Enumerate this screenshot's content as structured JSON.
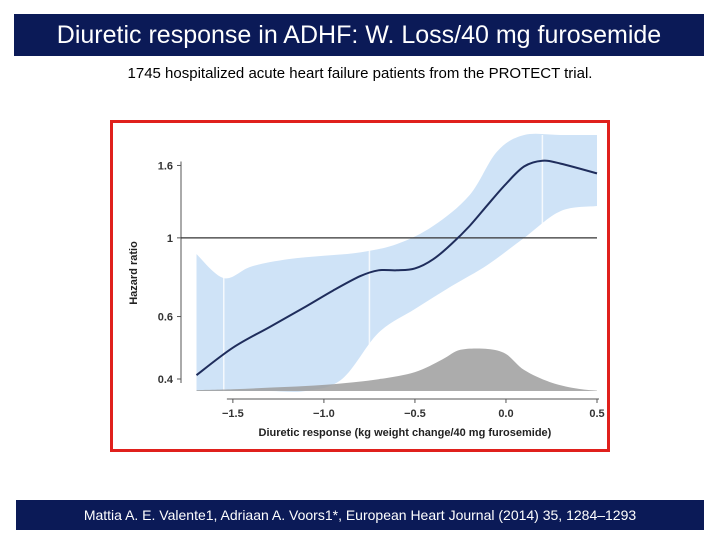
{
  "slide": {
    "title": "Diuretic response in ADHF: W. Loss/40 mg furosemide",
    "subtitle": "1745 hospitalized acute heart failure patients from the PROTECT trial.",
    "citation": "Mattia A. E. Valente1, Adriaan A. Voors1*, European Heart Journal (2014) 35, 1284–1293"
  },
  "colors": {
    "title_bg": "#0b1a57",
    "frame_border": "#e0201c",
    "ci_band": "#cfe3f7",
    "curve": "#1f2d5c",
    "reference_line": "#333333",
    "density": "#9e9e9e"
  },
  "chart_data": {
    "type": "line",
    "xlabel": "Diuretic response (kg weight change/40 mg furosemide)",
    "ylabel": "Hazard ratio",
    "x_ticks": [
      "−1.5",
      "−1.0",
      "−0.5",
      "0.0",
      "0.5"
    ],
    "x_tick_values": [
      -1.5,
      -1.0,
      -0.5,
      0.0,
      0.5
    ],
    "y_ticks": [
      "0.4",
      "0.6",
      "1",
      "1.6"
    ],
    "y_tick_values": [
      0.4,
      0.6,
      1.0,
      1.6
    ],
    "y_scale": "log",
    "xlim": [
      -1.73,
      0.5
    ],
    "ylim": [
      0.37,
      1.95
    ],
    "reference_line_y": 1.0,
    "series": [
      {
        "role": "hazard-ratio-curve",
        "x": [
          -1.7,
          -1.5,
          -1.3,
          -1.1,
          -0.95,
          -0.8,
          -0.7,
          -0.6,
          -0.5,
          -0.4,
          -0.3,
          -0.2,
          -0.1,
          0.0,
          0.1,
          0.2,
          0.3,
          0.5
        ],
        "y": [
          0.41,
          0.49,
          0.56,
          0.64,
          0.71,
          0.78,
          0.81,
          0.81,
          0.82,
          0.87,
          0.96,
          1.08,
          1.24,
          1.42,
          1.59,
          1.65,
          1.62,
          1.52
        ]
      },
      {
        "role": "ci-upper",
        "x": [
          -1.7,
          -1.55,
          -1.4,
          -1.2,
          -1.0,
          -0.8,
          -0.6,
          -0.4,
          -0.2,
          -0.05,
          0.1,
          0.3,
          0.5
        ],
        "y": [
          0.9,
          0.77,
          0.83,
          0.87,
          0.89,
          0.91,
          0.96,
          1.08,
          1.32,
          1.75,
          1.95,
          1.95,
          1.95
        ]
      },
      {
        "role": "ci-lower",
        "x": [
          -1.7,
          -1.5,
          -1.3,
          -1.1,
          -0.9,
          -0.7,
          -0.5,
          -0.3,
          -0.1,
          0.1,
          0.3,
          0.5
        ],
        "y": [
          0.37,
          0.37,
          0.37,
          0.37,
          0.4,
          0.54,
          0.63,
          0.73,
          0.84,
          1.0,
          1.19,
          1.23
        ]
      },
      {
        "role": "density",
        "x": [
          -1.7,
          -1.5,
          -1.3,
          -1.1,
          -0.9,
          -0.7,
          -0.5,
          -0.35,
          -0.25,
          -0.1,
          0.0,
          0.1,
          0.25,
          0.4,
          0.5
        ],
        "height": [
          0.02,
          0.04,
          0.08,
          0.12,
          0.18,
          0.28,
          0.45,
          0.75,
          0.98,
          1.0,
          0.88,
          0.5,
          0.2,
          0.05,
          0.01
        ]
      }
    ],
    "grid": false
  }
}
